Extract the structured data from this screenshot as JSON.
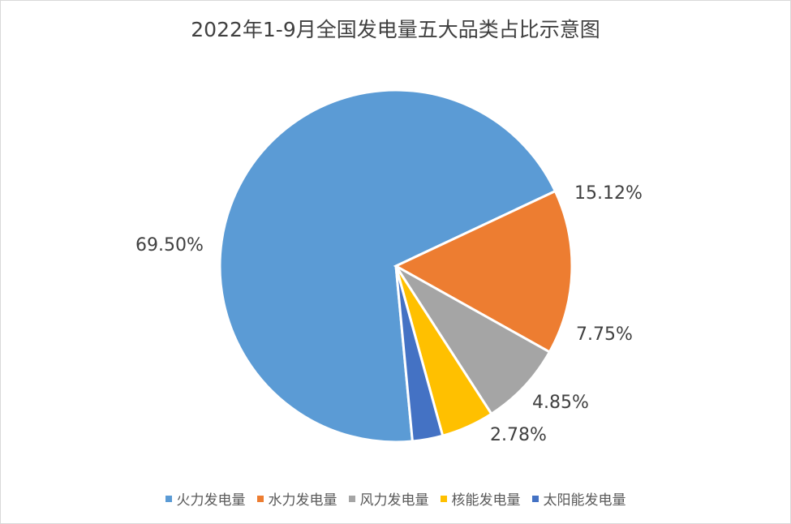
{
  "chart_data": {
    "type": "pie",
    "title": "2022年1-9月全国发电量五大品类占比示意图",
    "unit": "%",
    "slices": [
      {
        "name": "火力发电量",
        "value": 69.5,
        "label": "69.50%",
        "color": "#5b9bd5"
      },
      {
        "name": "水力发电量",
        "value": 15.12,
        "label": "15.12%",
        "color": "#ed7d31"
      },
      {
        "name": "风力发电量",
        "value": 7.75,
        "label": "7.75%",
        "color": "#a5a5a5"
      },
      {
        "name": "核能发电量",
        "value": 4.85,
        "label": "4.85%",
        "color": "#ffc000"
      },
      {
        "name": "太阳能发电量",
        "value": 2.78,
        "label": "2.78%",
        "color": "#4472c4"
      }
    ],
    "legend": "bottom"
  }
}
